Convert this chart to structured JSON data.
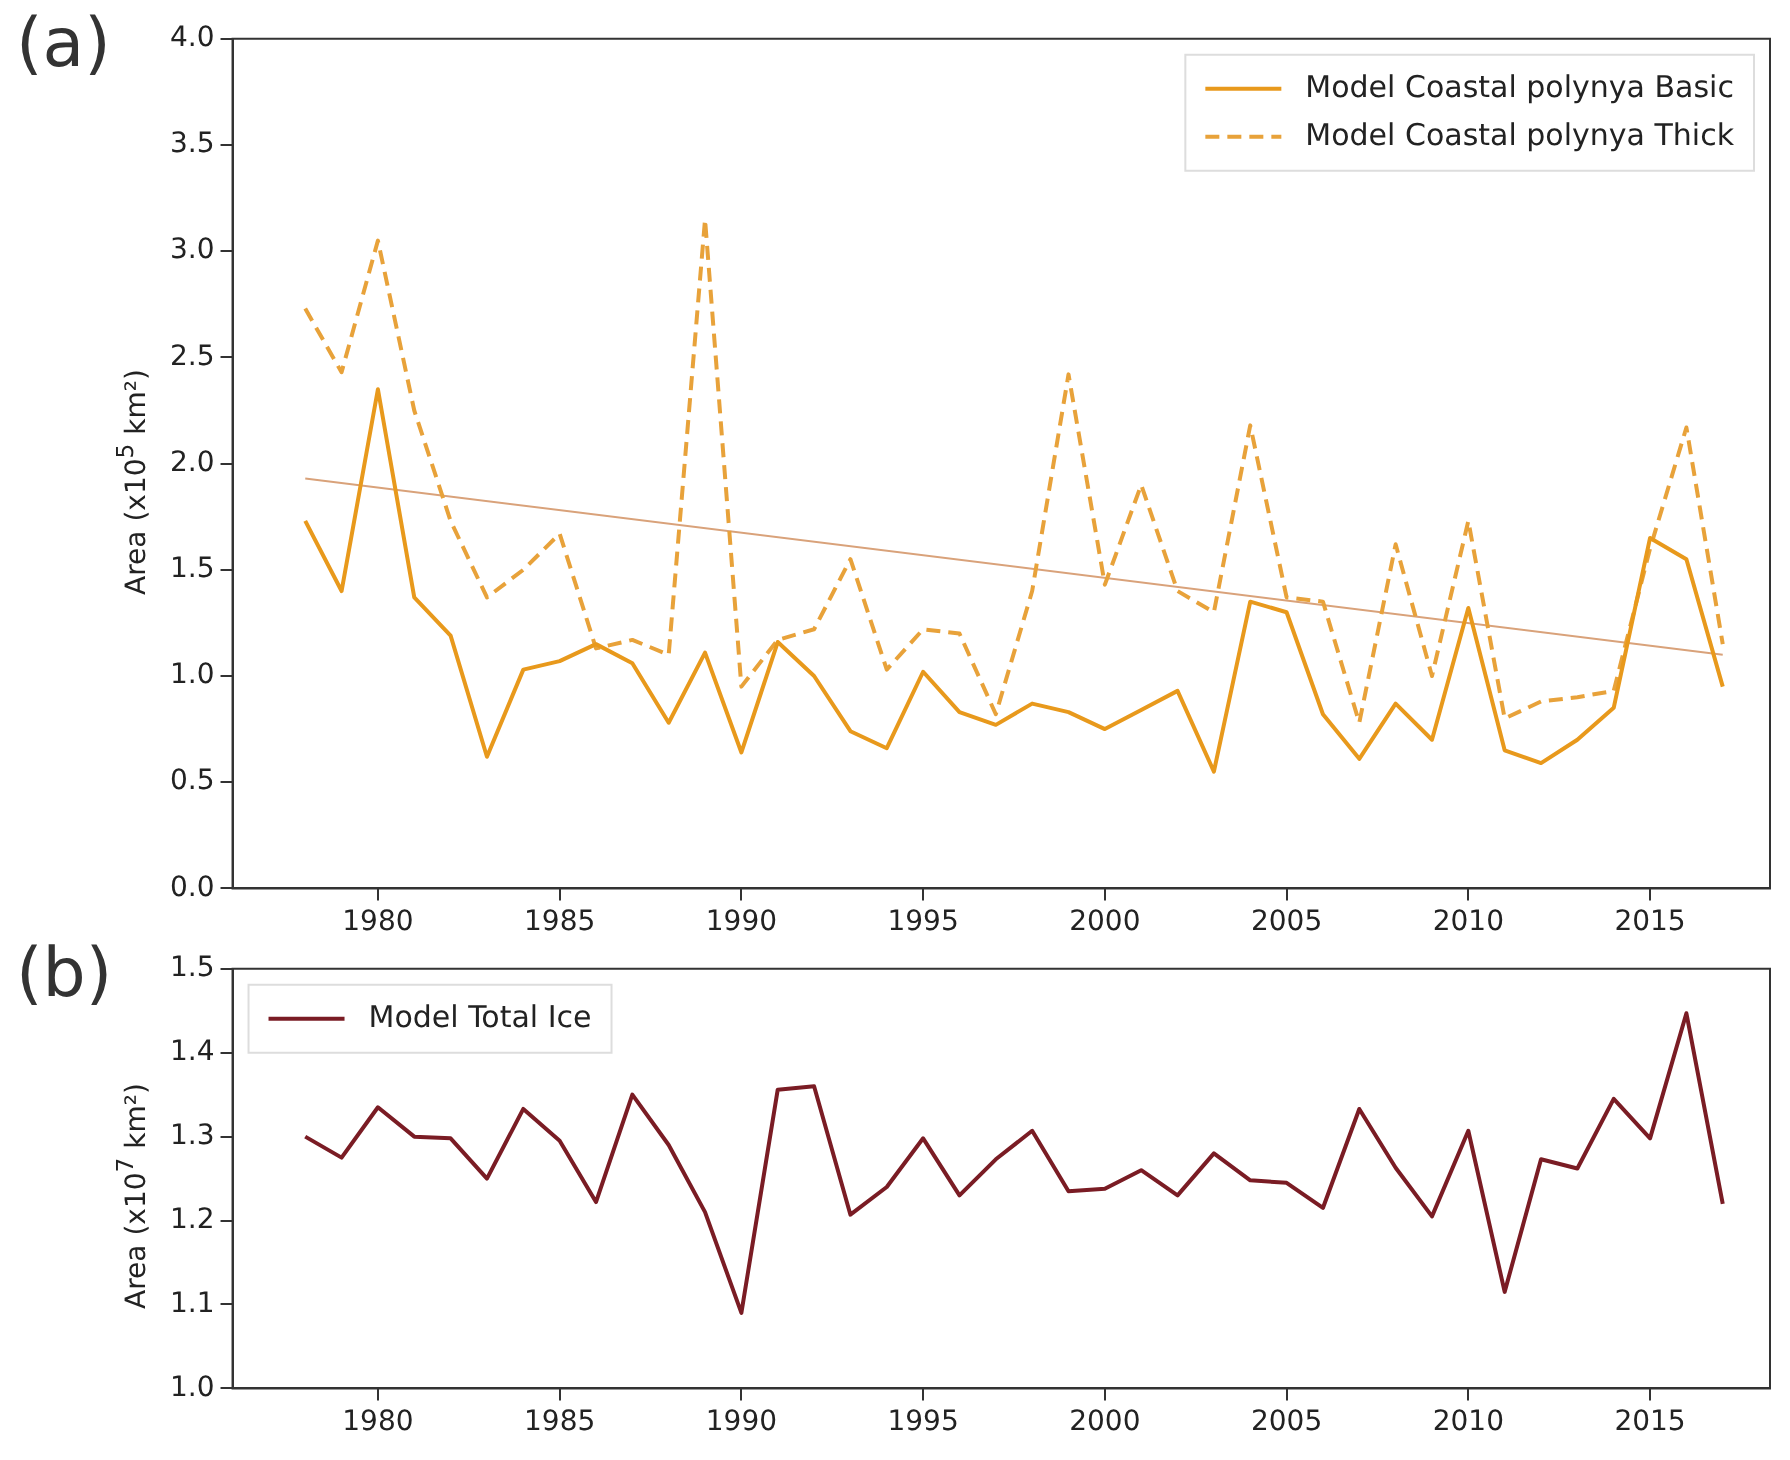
{
  "chart_data": [
    {
      "type": "line",
      "title": "(a)",
      "ylabel": "Area (x10$^{5}$ km²)",
      "x": [
        1978,
        1979,
        1980,
        1981,
        1982,
        1983,
        1984,
        1985,
        1986,
        1987,
        1988,
        1989,
        1990,
        1991,
        1992,
        1993,
        1994,
        1995,
        1996,
        1997,
        1998,
        1999,
        2000,
        2001,
        2002,
        2003,
        2004,
        2005,
        2006,
        2007,
        2008,
        2009,
        2010,
        2011,
        2012,
        2013,
        2014,
        2015,
        2016,
        2017
      ],
      "series": [
        {
          "name": "Model Coastal polynya Basic",
          "color": "#e8991c",
          "line_style": "solid",
          "values": [
            1.73,
            1.4,
            2.35,
            1.37,
            1.19,
            0.62,
            1.03,
            1.07,
            1.15,
            1.06,
            0.78,
            1.11,
            0.64,
            1.16,
            1.0,
            0.74,
            0.66,
            1.02,
            0.83,
            0.77,
            0.87,
            0.83,
            0.75,
            0.84,
            0.93,
            0.55,
            1.35,
            1.3,
            0.82,
            0.61,
            0.87,
            0.7,
            1.32,
            0.65,
            0.59,
            0.7,
            0.85,
            1.65,
            1.55,
            0.95
          ]
        },
        {
          "name": "Model Coastal polynya Thick",
          "color": "#e8a23a",
          "line_style": "dashed",
          "values": [
            2.73,
            2.43,
            3.05,
            2.25,
            1.73,
            1.37,
            1.5,
            1.67,
            1.13,
            1.17,
            1.1,
            3.15,
            0.95,
            1.17,
            1.22,
            1.55,
            1.03,
            1.22,
            1.2,
            0.82,
            1.4,
            2.42,
            1.43,
            1.9,
            1.4,
            1.3,
            2.18,
            1.37,
            1.35,
            0.78,
            1.62,
            1.0,
            1.73,
            0.8,
            0.88,
            0.9,
            0.93,
            1.6,
            2.17,
            1.15
          ]
        },
        {
          "color": "#d9a27a",
          "line_style": "solid",
          "x": [
            1978,
            2017
          ],
          "values": [
            1.93,
            1.1
          ]
        }
      ],
      "xlim": [
        1976,
        2018.3
      ],
      "xticks": [
        1980,
        1985,
        1990,
        1995,
        2000,
        2005,
        2010,
        2015
      ],
      "ylim": [
        0,
        4
      ],
      "yticks": [
        {
          "value": 0,
          "label": "0.0"
        },
        0.5,
        {
          "value": 1,
          "label": "1.0"
        },
        1.5,
        {
          "value": 2,
          "label": "2.0"
        },
        2.5,
        {
          "value": 3,
          "label": "3.0"
        },
        3.5,
        {
          "value": 4,
          "label": "4.0"
        }
      ],
      "grid": false,
      "legend": "top right",
      "marker": "none"
    },
    {
      "type": "line",
      "title": "(b)",
      "ylabel": "Area (x10$^{7}$ km²)",
      "x": [
        1978,
        1979,
        1980,
        1981,
        1982,
        1983,
        1984,
        1985,
        1986,
        1987,
        1988,
        1989,
        1990,
        1991,
        1992,
        1993,
        1994,
        1995,
        1996,
        1997,
        1998,
        1999,
        2000,
        2001,
        2002,
        2003,
        2004,
        2005,
        2006,
        2007,
        2008,
        2009,
        2010,
        2011,
        2012,
        2013,
        2014,
        2015,
        2016,
        2017
      ],
      "series": [
        {
          "name": "Model Total Ice",
          "color": "#7a1c24",
          "line_style": "solid",
          "values": [
            1.3,
            1.275,
            1.335,
            1.3,
            1.298,
            1.25,
            1.333,
            1.295,
            1.222,
            1.35,
            1.29,
            1.21,
            1.09,
            1.356,
            1.36,
            1.207,
            1.24,
            1.298,
            1.23,
            1.273,
            1.307,
            1.235,
            1.238,
            1.26,
            1.23,
            1.28,
            1.248,
            1.245,
            1.215,
            1.333,
            1.263,
            1.205,
            1.307,
            1.115,
            1.273,
            1.262,
            1.345,
            1.298,
            1.447,
            1.22
          ]
        }
      ],
      "xlim": [
        1976,
        2018.3
      ],
      "xticks": [
        1980,
        1985,
        1990,
        1995,
        2000,
        2005,
        2010,
        2015
      ],
      "ylim": [
        1.0,
        1.5
      ],
      "yticks": [
        {
          "value": 1,
          "label": "1.0"
        },
        1.1,
        1.2,
        1.3,
        1.4,
        1.5
      ],
      "grid": false,
      "legend": "top left",
      "marker": "none"
    }
  ]
}
